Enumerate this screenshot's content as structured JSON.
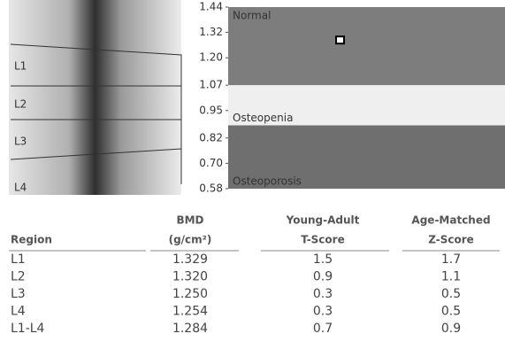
{
  "image": {
    "labels": [
      "L1",
      "L2",
      "L3",
      "L4"
    ]
  },
  "chart_data": {
    "type": "scatter",
    "ylim": [
      0.58,
      1.44
    ],
    "yticks": [
      1.44,
      1.32,
      {
        "value": 1.2,
        "label": "1.20"
      },
      1.07,
      0.95,
      0.82,
      {
        "value": 0.7,
        "label": "0.70"
      },
      0.58
    ],
    "zones": [
      {
        "name": "Normal",
        "from": 1.07,
        "to": 1.44,
        "color": "#7d7d7d"
      },
      {
        "name": "Osteopenia",
        "from": 0.88,
        "to": 1.07,
        "color": "#efefef"
      },
      {
        "name": "Osteoporosis",
        "from": 0.58,
        "to": 0.88,
        "color": "#6f6f6f"
      }
    ],
    "values": [
      1.284
    ],
    "color": "#ffffff"
  },
  "table": {
    "columns": [
      [
        "Region"
      ],
      [
        "BMD",
        "(g/cm²)"
      ],
      [
        "Young-Adult",
        "T-Score"
      ],
      [
        "Age-Matched",
        "Z-Score"
      ]
    ],
    "rows": [
      [
        "L1",
        "1.329",
        "1.5",
        "1.7"
      ],
      [
        "L2",
        "1.320",
        "0.9",
        "1.1"
      ],
      [
        "L3",
        "1.250",
        "0.3",
        "0.5"
      ],
      [
        "L4",
        "1.254",
        "0.3",
        "0.5"
      ],
      [
        "L1-L4",
        "1.284",
        "0.7",
        "0.9"
      ]
    ]
  }
}
